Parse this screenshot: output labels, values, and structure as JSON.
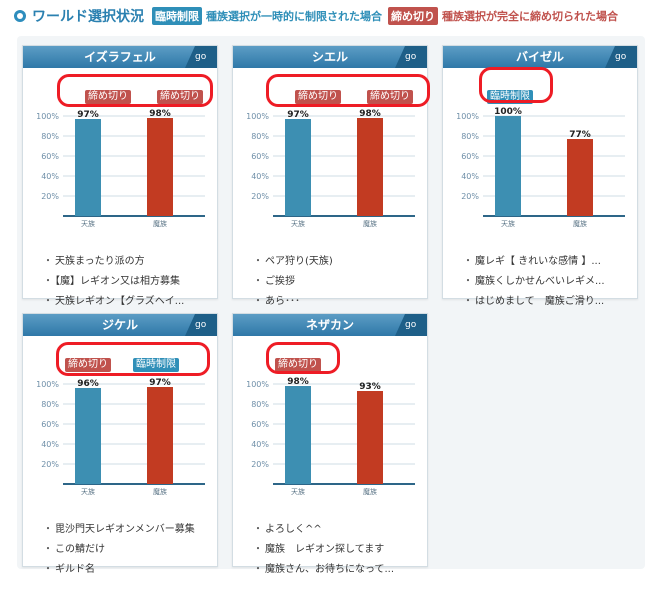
{
  "header": {
    "title": "ワールド選択状況",
    "tag_restricted": "臨時制限",
    "desc_restricted": "種族選択が一時的に制限された場合",
    "tag_closed": "締め切り",
    "desc_closed": "種族選択が完全に締め切られた場合"
  },
  "colors": {
    "blue": "#2f8fb8",
    "red": "#c0524d",
    "bar_blue": "#3d8fb2",
    "bar_red": "#c23b22",
    "circle": "#ee1c25"
  },
  "chart_common": {
    "y_ticks": [
      "100%",
      "80%",
      "60%",
      "40%",
      "20%"
    ],
    "categories": [
      "天族",
      "魔族"
    ]
  },
  "go_label": "go",
  "worlds": [
    {
      "name": "イズラフェル",
      "status": [
        "締め切り",
        "締め切り"
      ],
      "chart_data": {
        "type": "bar",
        "categories": [
          "天族",
          "魔族"
        ],
        "values": [
          97,
          98
        ],
        "value_labels": [
          "97%",
          "98%"
        ],
        "ylim": [
          0,
          100
        ]
      },
      "posts": [
        "天族まったり派の方",
        "【魔】レギオン又は相方募集",
        "天族レギオン【グラズヘイ..."
      ]
    },
    {
      "name": "シエル",
      "status": [
        "締め切り",
        "締め切り"
      ],
      "chart_data": {
        "type": "bar",
        "categories": [
          "天族",
          "魔族"
        ],
        "values": [
          97,
          98
        ],
        "value_labels": [
          "97%",
          "98%"
        ],
        "ylim": [
          0,
          100
        ]
      },
      "posts": [
        "ペア狩り(天族)",
        "ご挨拶",
        "あら･･･"
      ]
    },
    {
      "name": "バイゼル",
      "status": [
        "臨時制限"
      ],
      "chart_data": {
        "type": "bar",
        "categories": [
          "天族",
          "魔族"
        ],
        "values": [
          100,
          77
        ],
        "value_labels": [
          "100%",
          "77%"
        ],
        "ylim": [
          0,
          100
        ]
      },
      "posts": [
        "魔レギ【 きれいな感情 】...",
        "魔族くしかせんべいレギメ...",
        "はじめまして　魔族ご滑り..."
      ]
    },
    {
      "name": "ジケル",
      "status": [
        "締め切り",
        "臨時制限"
      ],
      "chart_data": {
        "type": "bar",
        "categories": [
          "天族",
          "魔族"
        ],
        "values": [
          96,
          97
        ],
        "value_labels": [
          "96%",
          "97%"
        ],
        "ylim": [
          0,
          100
        ]
      },
      "posts": [
        "毘沙門天レギオンメンバー募集",
        "この鯖だけ",
        "ギルド名"
      ]
    },
    {
      "name": "ネザカン",
      "status": [
        "締め切り"
      ],
      "chart_data": {
        "type": "bar",
        "categories": [
          "天族",
          "魔族"
        ],
        "values": [
          98,
          93
        ],
        "value_labels": [
          "98%",
          "93%"
        ],
        "ylim": [
          0,
          100
        ]
      },
      "posts": [
        "よろしく^^",
        "魔族　レギオン探してます",
        "魔族さん、お待ちになって..."
      ]
    }
  ]
}
